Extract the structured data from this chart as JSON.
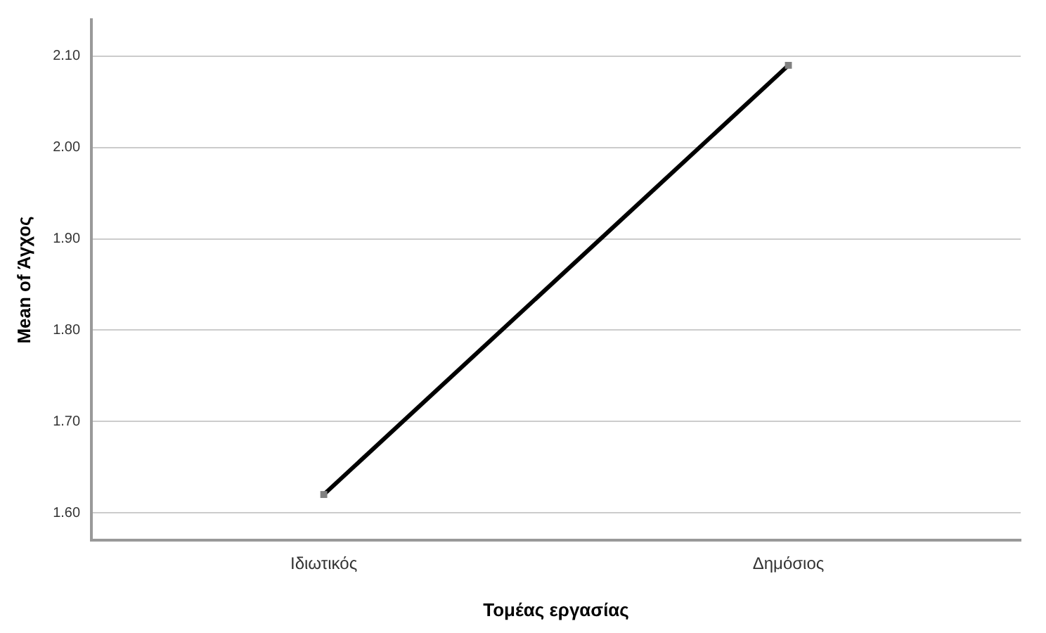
{
  "chart_data": {
    "type": "line",
    "xlabel": "Τομέας εργασίας",
    "ylabel": "Mean of Άγχος",
    "categories": [
      "Ιδιωτικός",
      "Δημόσιος"
    ],
    "series": [
      {
        "color": "#000000",
        "values": [
          1.62,
          2.09
        ]
      }
    ],
    "ylim": [
      1.57,
      2.14
    ],
    "yticks": [
      {
        "value": 1.6,
        "label": "1.60"
      },
      {
        "value": 1.7,
        "label": "1.70"
      },
      {
        "value": 1.8,
        "label": "1.80"
      },
      {
        "value": 1.9,
        "label": "1.90"
      },
      {
        "value": 2.0,
        "label": "2.00"
      },
      {
        "value": 2.1,
        "label": "2.10"
      }
    ],
    "grid": "y",
    "legend": false,
    "marker": "square",
    "line_style": "solid"
  }
}
